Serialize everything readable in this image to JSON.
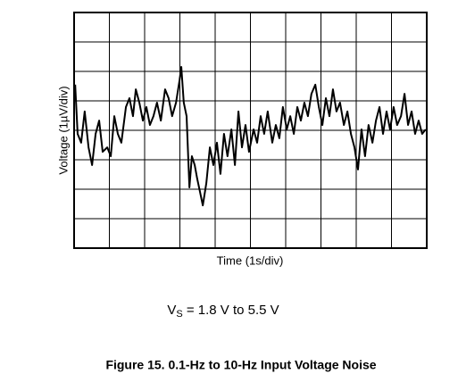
{
  "chart_data": {
    "type": "line",
    "xlabel": "Time (1s/div)",
    "ylabel": "Voltage (1µV/div)",
    "annotation": {
      "symbol": "V",
      "subscript": "S",
      "text": " = 1.8 V to 5.5 V"
    },
    "caption": "Figure 15. 0.1-Hz to 10-Hz Input Voltage Noise",
    "xlim": [
      0,
      10
    ],
    "ylim": [
      -4,
      4
    ],
    "xticks": [
      0,
      1,
      2,
      3,
      4,
      5,
      6,
      7,
      8,
      9,
      10
    ],
    "yticks": [
      -4,
      -3,
      -2,
      -1,
      0,
      1,
      2,
      3,
      4
    ],
    "grid": true,
    "color": "#000000",
    "x": [
      0.03,
      0.1,
      0.2,
      0.3,
      0.41,
      0.51,
      0.61,
      0.71,
      0.81,
      0.94,
      1.04,
      1.14,
      1.24,
      1.34,
      1.47,
      1.57,
      1.67,
      1.75,
      1.85,
      1.95,
      2.05,
      2.15,
      2.25,
      2.35,
      2.46,
      2.58,
      2.68,
      2.78,
      2.89,
      2.99,
      3.04,
      3.11,
      3.19,
      3.27,
      3.34,
      3.42,
      3.49,
      3.57,
      3.65,
      3.75,
      3.85,
      3.95,
      4.05,
      4.15,
      4.25,
      4.35,
      4.46,
      4.56,
      4.66,
      4.76,
      4.86,
      4.96,
      5.09,
      5.19,
      5.29,
      5.39,
      5.49,
      5.62,
      5.72,
      5.82,
      5.92,
      6.03,
      6.13,
      6.23,
      6.33,
      6.43,
      6.53,
      6.63,
      6.73,
      6.84,
      6.94,
      7.04,
      7.14,
      7.24,
      7.34,
      7.44,
      7.54,
      7.65,
      7.75,
      7.85,
      7.95,
      8.05,
      8.15,
      8.25,
      8.35,
      8.46,
      8.56,
      8.66,
      8.76,
      8.86,
      8.96,
      9.06,
      9.16,
      9.27,
      9.37,
      9.47,
      9.57,
      9.67,
      9.77,
      9.87,
      9.97
    ],
    "values": [
      1.55,
      -0.12,
      -0.42,
      0.64,
      -0.58,
      -1.18,
      -0.12,
      0.33,
      -0.73,
      -0.58,
      -0.88,
      0.48,
      -0.12,
      -0.42,
      0.79,
      1.09,
      0.48,
      1.39,
      0.94,
      0.33,
      0.79,
      0.18,
      0.48,
      0.94,
      0.33,
      1.39,
      1.09,
      0.48,
      0.94,
      1.7,
      2.15,
      0.94,
      0.48,
      -1.94,
      -0.88,
      -1.18,
      -1.64,
      -2.09,
      -2.55,
      -1.79,
      -0.58,
      -1.18,
      -0.42,
      -1.48,
      -0.12,
      -0.88,
      0.03,
      -1.18,
      0.64,
      -0.58,
      0.18,
      -0.73,
      0.03,
      -0.42,
      0.48,
      -0.12,
      0.64,
      -0.42,
      0.18,
      -0.27,
      0.79,
      0.03,
      0.48,
      -0.12,
      0.79,
      0.33,
      0.94,
      0.48,
      1.24,
      1.55,
      0.79,
      0.18,
      1.09,
      0.48,
      1.39,
      0.64,
      0.94,
      0.18,
      0.64,
      -0.12,
      -0.58,
      -1.33,
      0.03,
      -0.88,
      0.18,
      -0.42,
      0.33,
      0.79,
      -0.12,
      0.64,
      0.03,
      0.79,
      0.18,
      0.48,
      1.24,
      0.18,
      0.64,
      -0.12,
      0.33,
      -0.12,
      0.03
    ]
  }
}
